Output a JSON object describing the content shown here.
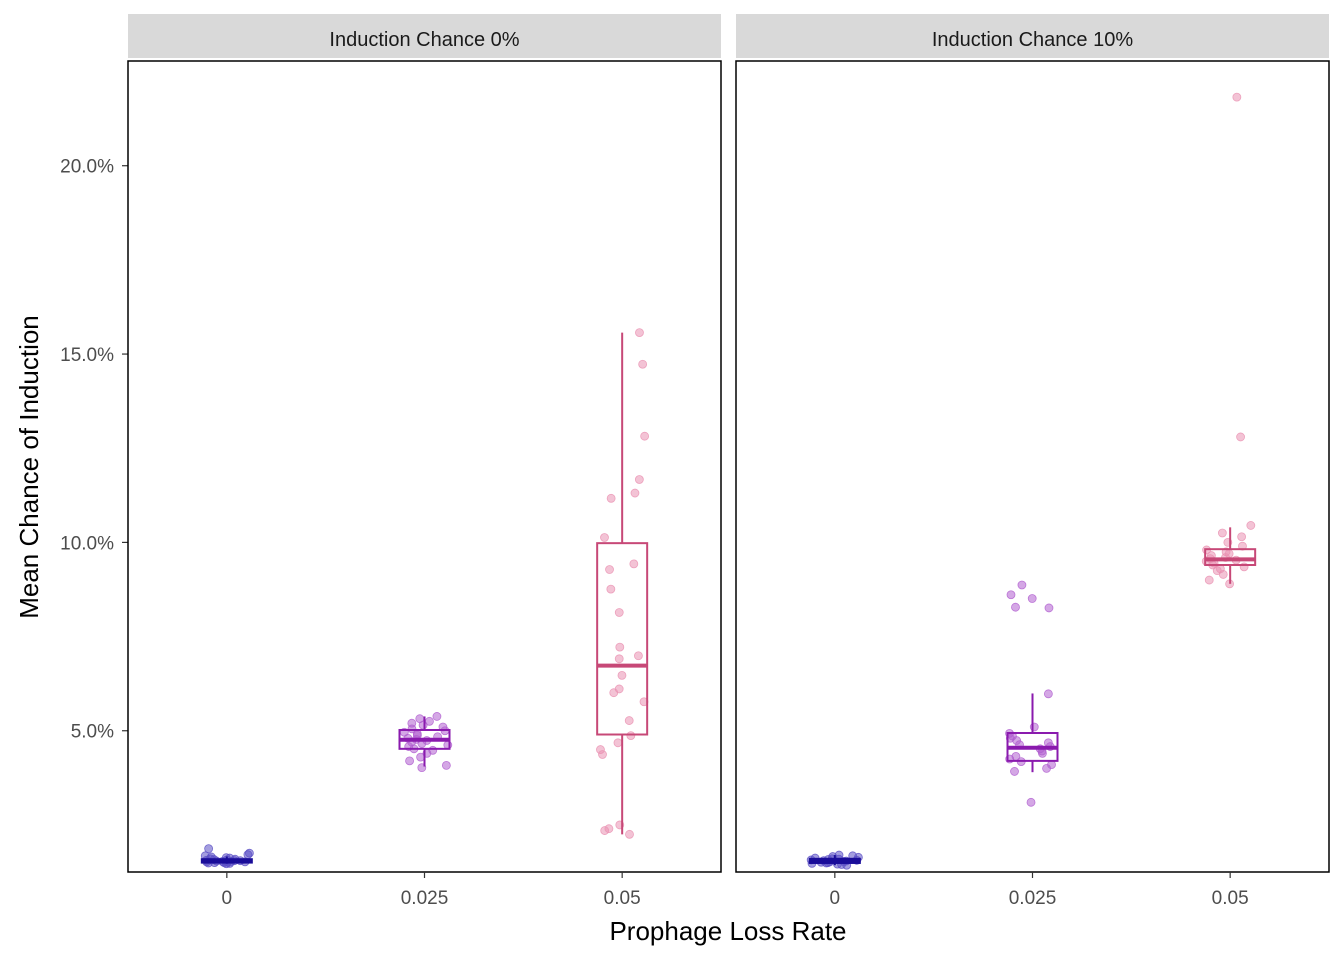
{
  "chart_data": {
    "type": "boxplot",
    "xlabel": "Prophage Loss Rate",
    "ylabel": "Mean Chance of Induction",
    "ylim": [
      0.0125,
      0.2278
    ],
    "yticks": [
      {
        "value": 0.05,
        "label": "5.0%"
      },
      {
        "value": 0.1,
        "label": "10.0%"
      },
      {
        "value": 0.15,
        "label": "15.0%"
      },
      {
        "value": 0.2,
        "label": "20.0%"
      }
    ],
    "categories": [
      "0",
      "0.025",
      "0.05"
    ],
    "colors": {
      "0": "#1a0d99",
      "0.025": "#8a1aae",
      "0.05": "#c74877",
      "points_0": "#5a4ec4",
      "points_0.025": "#b05ed0",
      "points_0.05": "#ea91b2",
      "strip_bg": "#d9d9d9"
    },
    "facets": [
      {
        "title": "Induction Chance 0%",
        "groups": [
          {
            "category": "0",
            "box": {
              "lower_whisker": 0.0147,
              "q1": 0.015,
              "median": 0.0153,
              "q3": 0.0159,
              "upper_whisker": 0.0166
            },
            "points": [
              0.0147,
              0.0148,
              0.0149,
              0.015,
              0.015,
              0.0151,
              0.0152,
              0.0152,
              0.0153,
              0.0153,
              0.0154,
              0.0155,
              0.0155,
              0.0156,
              0.0157,
              0.0158,
              0.0159,
              0.016,
              0.0162,
              0.0163,
              0.0165,
              0.0168,
              0.0171,
              0.0175,
              0.0187
            ]
          },
          {
            "category": "0.025",
            "box": {
              "lower_whisker": 0.0405,
              "q1": 0.0452,
              "median": 0.0476,
              "q3": 0.0502,
              "upper_whisker": 0.0538
            },
            "points": [
              0.0402,
              0.0408,
              0.042,
              0.043,
              0.044,
              0.0448,
              0.0452,
              0.0458,
              0.0462,
              0.0466,
              0.047,
              0.0474,
              0.0477,
              0.048,
              0.0484,
              0.0488,
              0.0492,
              0.0496,
              0.05,
              0.0505,
              0.051,
              0.0515,
              0.052,
              0.0525,
              0.0532,
              0.0538
            ]
          },
          {
            "category": "0.05",
            "box": {
              "lower_whisker": 0.0225,
              "q1": 0.049,
              "median": 0.0673,
              "q3": 0.0998,
              "upper_whisker": 0.1557
            },
            "points": [
              0.0225,
              0.0235,
              0.024,
              0.025,
              0.0437,
              0.045,
              0.0468,
              0.0487,
              0.0527,
              0.0577,
              0.0601,
              0.0611,
              0.0647,
              0.0691,
              0.0699,
              0.0722,
              0.0814,
              0.0876,
              0.0928,
              0.0943,
              0.1013,
              0.1117,
              0.1131,
              0.1167,
              0.1282,
              0.1473,
              0.1557
            ]
          }
        ]
      },
      {
        "title": "Induction Chance 10%",
        "groups": [
          {
            "category": "0",
            "box": {
              "lower_whisker": 0.0143,
              "q1": 0.0149,
              "median": 0.0153,
              "q3": 0.016,
              "upper_whisker": 0.017
            },
            "points": [
              0.0143,
              0.0145,
              0.0146,
              0.0148,
              0.0149,
              0.015,
              0.0151,
              0.0152,
              0.0153,
              0.0154,
              0.0155,
              0.0156,
              0.0157,
              0.0158,
              0.0159,
              0.016,
              0.0162,
              0.0164,
              0.0166,
              0.0168,
              0.017
            ]
          },
          {
            "category": "0.025",
            "box": {
              "lower_whisker": 0.039,
              "q1": 0.042,
              "median": 0.0455,
              "q3": 0.0494,
              "upper_whisker": 0.0599
            },
            "points": [
              0.031,
              0.0392,
              0.04,
              0.041,
              0.0418,
              0.0425,
              0.0432,
              0.044,
              0.0446,
              0.0452,
              0.0458,
              0.0463,
              0.0468,
              0.0474,
              0.048,
              0.0486,
              0.0493,
              0.051,
              0.0598,
              0.0826,
              0.0828,
              0.0851,
              0.0861,
              0.0887
            ]
          },
          {
            "category": "0.05",
            "box": {
              "lower_whisker": 0.089,
              "q1": 0.094,
              "median": 0.0955,
              "q3": 0.0982,
              "upper_whisker": 0.104
            },
            "points": [
              0.089,
              0.09,
              0.0915,
              0.0925,
              0.093,
              0.0935,
              0.094,
              0.0945,
              0.095,
              0.0953,
              0.0957,
              0.096,
              0.0965,
              0.097,
              0.0975,
              0.098,
              0.099,
              0.1,
              0.1015,
              0.1025,
              0.1045,
              0.128,
              0.2182
            ]
          }
        ]
      }
    ]
  }
}
